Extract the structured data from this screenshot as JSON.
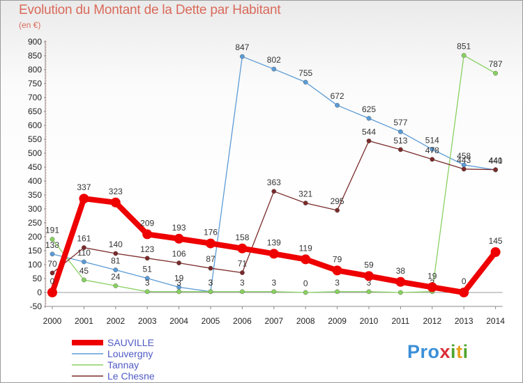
{
  "chart_data": {
    "type": "line",
    "title": "Evolution du Montant de la Dette par Habitant",
    "subtitle": "(en €)",
    "x": [
      "2000",
      "2001",
      "2002",
      "2003",
      "2004",
      "2005",
      "2006",
      "2007",
      "2008",
      "2009",
      "2010",
      "2011",
      "2012",
      "2013",
      "2014"
    ],
    "ylim": [
      -50,
      900
    ],
    "yticks": [
      -50,
      0,
      50,
      100,
      150,
      200,
      250,
      300,
      350,
      400,
      450,
      500,
      550,
      600,
      650,
      700,
      750,
      800,
      850,
      900
    ],
    "grid": false,
    "legend_position": "bottom-left",
    "series": [
      {
        "name": "SAUVILLE",
        "color": "#ee0000",
        "values": [
          0,
          337,
          323,
          209,
          193,
          176,
          158,
          139,
          119,
          79,
          59,
          38,
          19,
          0,
          145
        ]
      },
      {
        "name": "Louvergny",
        "color": "#5b9bd5",
        "values": [
          138,
          110,
          81,
          51,
          19,
          3,
          847,
          802,
          755,
          672,
          625,
          577,
          514,
          458,
          440
        ]
      },
      {
        "name": "Tannay",
        "color": "#88d060",
        "values": [
          191,
          45,
          24,
          3,
          3,
          3,
          3,
          3,
          0,
          3,
          3,
          0,
          3,
          851,
          787
        ]
      },
      {
        "name": "Le Chesne",
        "color": "#7a2a2a",
        "values": [
          70,
          161,
          140,
          123,
          106,
          87,
          71,
          363,
          321,
          295,
          544,
          513,
          478,
          443,
          441
        ]
      }
    ]
  },
  "logo": {
    "p": "Pro",
    "x": "x",
    "i": "i",
    "t": "t",
    "i2": "i"
  }
}
